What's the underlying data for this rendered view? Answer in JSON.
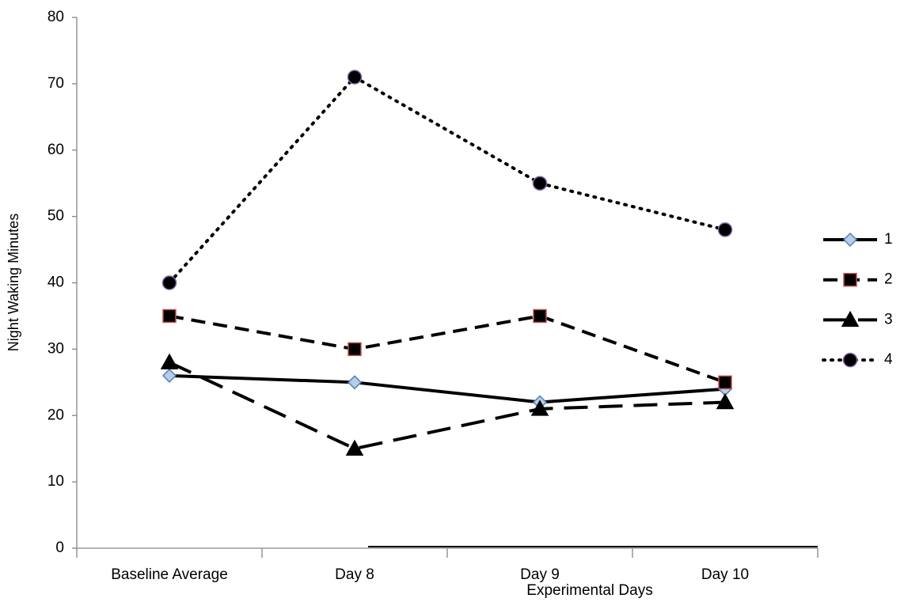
{
  "chart_data": {
    "type": "line",
    "x_label": "Experimental Days",
    "y_label": "Night Waking Minutes",
    "categories": [
      "Baseline Average",
      "Day 8",
      "Day 9",
      "Day 10"
    ],
    "series": [
      {
        "name": "1",
        "color": "#000000",
        "line_style": "solid",
        "marker": "diamond",
        "marker_fill": "#b9cde5",
        "marker_edge": "#4f81bd",
        "values": [
          26,
          25,
          22,
          24
        ]
      },
      {
        "name": "2",
        "color": "#000000",
        "line_style": "dashed",
        "marker": "square",
        "marker_fill": "#000000",
        "marker_edge": "#c0504d",
        "values": [
          35,
          30,
          35,
          25
        ]
      },
      {
        "name": "3",
        "color": "#000000",
        "line_style": "longdash",
        "marker": "triangle",
        "marker_fill": "#000000",
        "marker_edge": "#000000",
        "values": [
          28,
          15,
          21,
          22
        ]
      },
      {
        "name": "4",
        "color": "#000000",
        "line_style": "dotted",
        "marker": "circle",
        "marker_fill": "#000000",
        "marker_edge": "#8064a2",
        "values": [
          40,
          71,
          55,
          48
        ]
      }
    ],
    "ylim": [
      0,
      80
    ],
    "yticks": [
      0,
      10,
      20,
      30,
      40,
      50,
      60,
      70,
      80
    ],
    "grid": false,
    "legend": "right"
  }
}
